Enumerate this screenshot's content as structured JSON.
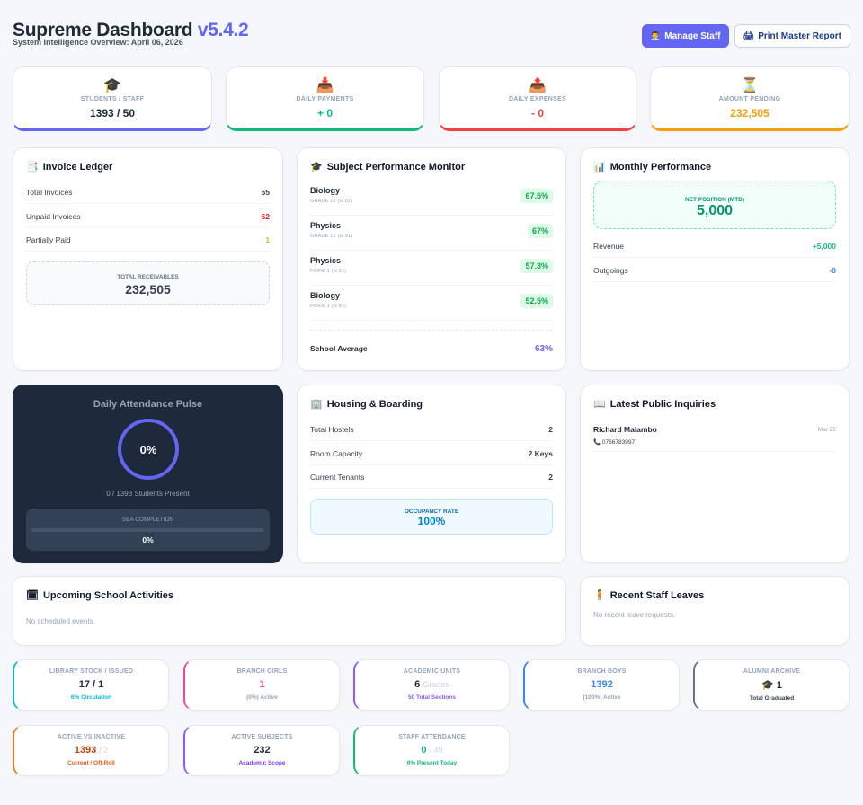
{
  "header": {
    "title": "Supreme Dashboard",
    "version": "v5.4.2",
    "subtitle": "System Intelligence Overview: April 06, 2026",
    "manage_staff": "Manage Staff",
    "print_report": "Print Master Report"
  },
  "stats": [
    {
      "icon": "🎓",
      "label": "STUDENTS / STAFF",
      "value": "1393 / 50",
      "color": "#6366f1"
    },
    {
      "icon": "📥",
      "label": "DAILY PAYMENTS",
      "value": "+ 0",
      "color": "#10b981"
    },
    {
      "icon": "📤",
      "label": "DAILY EXPENSES",
      "value": "- 0",
      "color": "#ef4444"
    },
    {
      "icon": "⏳",
      "label": "AMOUNT PENDING",
      "value": "232,505",
      "color": "#f59e0b"
    }
  ],
  "invoice": {
    "title": "Invoice Ledger",
    "icon": "📑",
    "rows": [
      {
        "label": "Total Invoices",
        "value": "65",
        "color": "#374151"
      },
      {
        "label": "Unpaid Invoices",
        "value": "62",
        "color": "#dc2626"
      },
      {
        "label": "Partially Paid",
        "value": "1",
        "color": "#eab308"
      }
    ],
    "receivable_label": "TOTAL RECEIVABLES",
    "receivable_value": "232,505"
  },
  "subjects": {
    "title": "Subject Performance Monitor",
    "icon": "🎓",
    "items": [
      {
        "name": "Biology",
        "grade": "GRADE 12 (G 81)",
        "pct": "67.5%"
      },
      {
        "name": "Physics",
        "grade": "GRADE 12 (G 91)",
        "pct": "67%"
      },
      {
        "name": "Physics",
        "grade": "FORM 1 (N 81)",
        "pct": "57.3%"
      },
      {
        "name": "Biology",
        "grade": "FORM 1 (N 81)",
        "pct": "52.5%"
      }
    ],
    "average_label": "School Average",
    "average_value": "63%"
  },
  "monthly": {
    "title": "Monthly Performance",
    "icon": "📊",
    "net_label": "NET POSITION (MTD)",
    "net_value": "5,000",
    "revenue_label": "Revenue",
    "revenue_value": "+5,000",
    "outgoings_label": "Outgoings",
    "outgoings_value": "-0"
  },
  "attendance": {
    "title": "Daily Attendance Pulse",
    "percent": "0%",
    "present_text": "0 / 1393 Students Present",
    "sba_label": "SBA COMPLETION",
    "sba_value": "0%",
    "sba_fraction": 0
  },
  "housing": {
    "title": "Housing & Boarding",
    "icon": "🏢",
    "rows": [
      {
        "label": "Total Hostels",
        "value": "2"
      },
      {
        "label": "Room Capacity",
        "value": "2 Keys"
      },
      {
        "label": "Current Tenants",
        "value": "2"
      }
    ],
    "occupancy_label": "OCCUPANCY RATE",
    "occupancy_value": "100%"
  },
  "inquiries": {
    "title": "Latest Public Inquiries",
    "icon": "📖",
    "items": [
      {
        "name": "Richard Malambo",
        "date": "Mar 25",
        "phone": "0766783997",
        "phone_icon": "📞"
      }
    ]
  },
  "activities": {
    "title": "Upcoming School Activities",
    "icon": "🗓",
    "empty": "No scheduled events."
  },
  "leaves": {
    "title": "Recent Staff Leaves",
    "icon": "🧍",
    "empty": "No recent leave requests."
  },
  "minis": [
    {
      "label": "LIBRARY STOCK / ISSUED",
      "value": "17 / 1",
      "suffix": "",
      "foot": "6% Circulation",
      "color": "#06b6d4",
      "value_color": "#1f2937",
      "foot_color": "#06b6d4"
    },
    {
      "label": "BRANCH GIRLS",
      "value": "1",
      "suffix": "",
      "foot": "(0%) Active",
      "color": "#ec4899",
      "value_color": "#ec4899",
      "foot_color": "#94a3b8"
    },
    {
      "label": "ACADEMIC UNITS",
      "value": "6",
      "suffix": "Grades",
      "foot": "50 Total Sections",
      "color": "#8b5cf6",
      "value_color": "#1f2937",
      "foot_color": "#8b5cf6"
    },
    {
      "label": "BRANCH BOYS",
      "value": "1392",
      "suffix": "",
      "foot": "(100%) Active",
      "color": "#3b82f6",
      "value_color": "#3b82f6",
      "foot_color": "#94a3b8"
    },
    {
      "label": "ALUMNI ARCHIVE",
      "value": "🎓 1",
      "suffix": "",
      "foot": "Total Graduated",
      "color": "#64748b",
      "value_color": "#1f2937",
      "foot_color": "#374151"
    },
    {
      "label": "ACTIVE VS INACTIVE",
      "value": "1393",
      "suffix": "/ 2",
      "foot": "Current / Off-Roll",
      "color": "#f97316",
      "value_color": "#c2410c",
      "foot_color": "#ea580c"
    },
    {
      "label": "ACTIVE SUBJECTS",
      "value": "232",
      "suffix": "",
      "foot": "Academic Scope",
      "color": "#8b5cf6",
      "value_color": "#1f2937",
      "foot_color": "#7c3aed"
    },
    {
      "label": "STAFF ATTENDANCE",
      "value": "0",
      "suffix": "/ 49",
      "foot": "0% Present Today",
      "color": "#10b981",
      "value_color": "#10b981",
      "foot_color": "#10b981"
    }
  ]
}
